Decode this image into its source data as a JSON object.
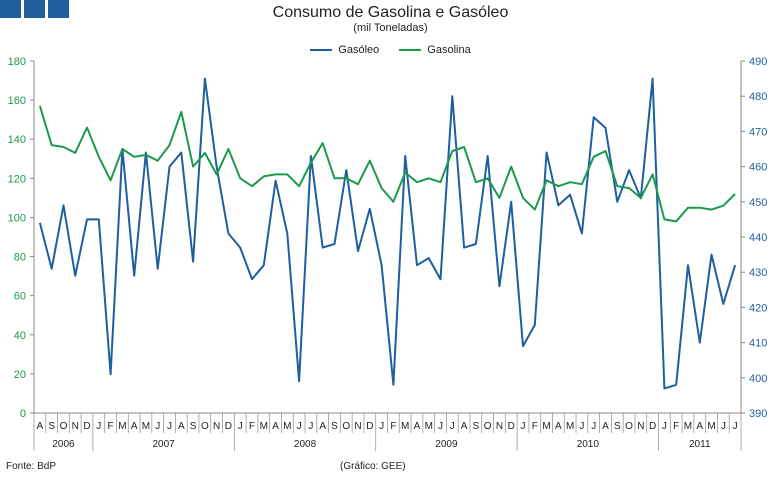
{
  "colors": {
    "gasoleo": "#1f5f9e",
    "gasolina": "#1a9a4a",
    "axis_left": "#1a9a4a",
    "axis_right": "#1f5f9e"
  },
  "title": "Consumo de Gasolina e Gasóleo",
  "subtitle": "(mil Toneladas)",
  "footer": {
    "source": "Fonte: BdP",
    "credit": "(Gráfico: GEE)"
  },
  "chart_data": {
    "type": "line",
    "title": "Consumo de Gasolina e Gasóleo",
    "subtitle": "(mil Toneladas)",
    "legend_position": "top-center",
    "grid": false,
    "y_left": {
      "range": [
        0,
        180
      ],
      "ticks": [
        "0",
        "20",
        "40",
        "60",
        "80",
        "100",
        "120",
        "140",
        "160",
        "180"
      ],
      "series": "Gasolina"
    },
    "y_right": {
      "range": [
        390,
        490
      ],
      "ticks": [
        "390",
        "400",
        "410",
        "420",
        "430",
        "440",
        "450",
        "460",
        "470",
        "480",
        "490"
      ],
      "series": "Gasóleo"
    },
    "months": [
      "A",
      "S",
      "O",
      "N",
      "D",
      "J",
      "F",
      "M",
      "A",
      "M",
      "J",
      "J",
      "A",
      "S",
      "O",
      "N",
      "D",
      "J",
      "F",
      "M",
      "A",
      "M",
      "J",
      "J",
      "A",
      "S",
      "O",
      "N",
      "D",
      "J",
      "F",
      "M",
      "A",
      "M",
      "J",
      "J",
      "A",
      "S",
      "O",
      "N",
      "D",
      "J",
      "F",
      "M",
      "A",
      "M",
      "J",
      "J",
      "A",
      "S",
      "O",
      "N",
      "D",
      "J",
      "F",
      "M",
      "A",
      "M",
      "J",
      "J"
    ],
    "years": [
      {
        "label": "2006",
        "start": 0,
        "count": 5
      },
      {
        "label": "2007",
        "start": 5,
        "count": 12
      },
      {
        "label": "2008",
        "start": 17,
        "count": 12
      },
      {
        "label": "2009",
        "start": 29,
        "count": 12
      },
      {
        "label": "2010",
        "start": 41,
        "count": 12
      },
      {
        "label": "2011",
        "start": 53,
        "count": 7
      }
    ],
    "series": [
      {
        "name": "Gasóleo",
        "axis": "right",
        "values": [
          444,
          431,
          449,
          429,
          445,
          445,
          401,
          465,
          429,
          464,
          431,
          460,
          464,
          433,
          485,
          460,
          441,
          437,
          428,
          432,
          456,
          441,
          399,
          463,
          437,
          438,
          459,
          436,
          448,
          432,
          398,
          463,
          432,
          434,
          428,
          480,
          437,
          438,
          463,
          426,
          450,
          409,
          415,
          464,
          449,
          452,
          441,
          474,
          471,
          450,
          459,
          451,
          485,
          397,
          398,
          432,
          410,
          435,
          421,
          432
        ]
      },
      {
        "name": "Gasolina",
        "axis": "left",
        "values": [
          157,
          137,
          136,
          133,
          146,
          131,
          119,
          135,
          131,
          132,
          129,
          137,
          154,
          126,
          133,
          122,
          135,
          120,
          116,
          121,
          122,
          122,
          116,
          128,
          138,
          120,
          120,
          117,
          129,
          115,
          108,
          123,
          118,
          120,
          118,
          134,
          136,
          118,
          120,
          110,
          126,
          110,
          104,
          119,
          116,
          118,
          117,
          131,
          134,
          116,
          115,
          110,
          122,
          99,
          98,
          105,
          105,
          104,
          106,
          112
        ]
      }
    ]
  }
}
